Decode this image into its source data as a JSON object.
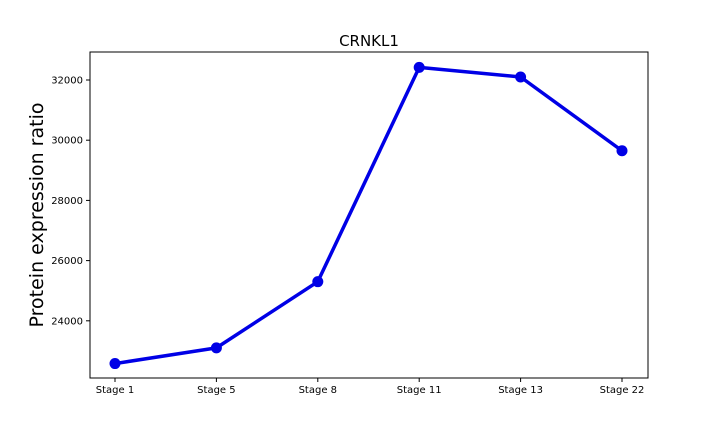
{
  "chart_data": {
    "type": "line",
    "title": "CRNKL1",
    "xlabel": "",
    "ylabel": "Protein expression ratio",
    "categories": [
      "Stage 1",
      "Stage 5",
      "Stage 8",
      "Stage 11",
      "Stage 13",
      "Stage 22"
    ],
    "series": [
      {
        "values": [
          22580,
          23100,
          25300,
          32420,
          32100,
          29650
        ],
        "color": "#0000e6"
      }
    ],
    "ylim": [
      22100,
      32930
    ],
    "yticks": [
      24000,
      26000,
      28000,
      30000,
      32000
    ],
    "ytick_labels": [
      "24000",
      "26000",
      "28000",
      "30000",
      "32000"
    ],
    "grid": false,
    "legend": "none"
  }
}
